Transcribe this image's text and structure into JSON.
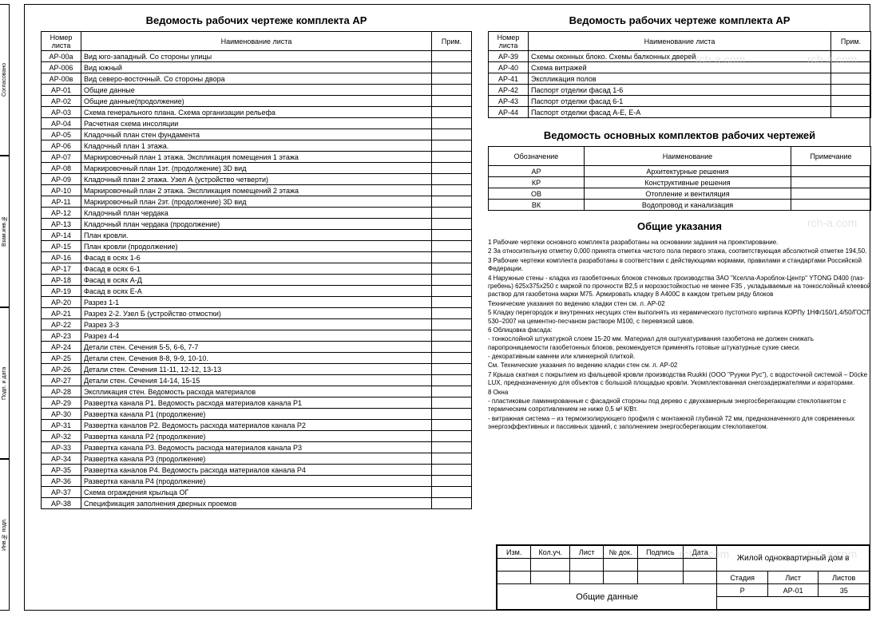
{
  "titles": {
    "table1": "Ведомость рабочих чертеже комплекта АР",
    "table2": "Ведомость рабочих чертеже комплекта АР",
    "table3": "Ведомость основных комплектов рабочих чертежей",
    "gu": "Общие указания"
  },
  "headers": {
    "h1": "Номер листа",
    "h2": "Наименование листа",
    "h3": "Прим.",
    "h4": "Обозначение",
    "h5": "Наименование",
    "h6": "Примечание"
  },
  "sheetList1": [
    [
      "АР-00а",
      "Вид юго-западный. Со стороны улицы"
    ],
    [
      "АР-006",
      "Вид южный"
    ],
    [
      "АР-00в",
      "Вид северо-восточный. Со стороны двора"
    ],
    [
      "АР-01",
      "Общие данные"
    ],
    [
      "АР-02",
      "Общие данные(продолжение)"
    ],
    [
      "АР-03",
      "Схема генерального плана. Схема организации рельефа"
    ],
    [
      "АР-04",
      "Расчетная схема инсоляции"
    ],
    [
      "АР-05",
      "Кладочный план стен фундамента"
    ],
    [
      "АР-06",
      "Кладочный план 1 этажа."
    ],
    [
      "АР-07",
      "Маркировочный план 1 этажа. Экспликация помещения 1 этажа"
    ],
    [
      "АР-08",
      "Маркировочный план 1эт. (продолжение) 3D вид"
    ],
    [
      "АР-09",
      "Кладочный план 2 этажа. Узел А (устройство четверти)"
    ],
    [
      "АР-10",
      "Маркировочный план 2 этажа. Экспликация помещений 2 этажа"
    ],
    [
      "АР-11",
      "Маркировочный план 2эт. (продолжение) 3D вид"
    ],
    [
      "АР-12",
      "Кладочный план чердака"
    ],
    [
      "АР-13",
      "Кладочный план чердака (продолжение)"
    ],
    [
      "АР-14",
      "План кровли."
    ],
    [
      "АР-15",
      "План кровли (продолжение)"
    ],
    [
      "АР-16",
      "Фасад в осях 1-6"
    ],
    [
      "АР-17",
      "Фасад в осях 6-1"
    ],
    [
      "АР-18",
      "Фасад в осях А-Д"
    ],
    [
      "АР-19",
      "Фасад в осях Е-А"
    ],
    [
      "АР-20",
      "Разрез 1-1"
    ],
    [
      "АР-21",
      "Разрез 2-2. Узел Б (устройство отмостки)"
    ],
    [
      "АР-22",
      "Разрез 3-3"
    ],
    [
      "АР-23",
      "Разрез 4-4"
    ],
    [
      "АР-24",
      "Детали стен. Сечения 5-5, 6-6, 7-7"
    ],
    [
      "АР-25",
      "Детали стен. Сечения  8-8, 9-9, 10-10."
    ],
    [
      "АР-26",
      "Детали стен. Сечения 11-11, 12-12, 13-13"
    ],
    [
      "АР-27",
      "Детали стен. Сечения 14-14, 15-15"
    ],
    [
      "АР-28",
      "Экспликация стен. Ведомость расхода материалов"
    ],
    [
      "АР-29",
      "Развертка канала Р1. Ведомость расхода материалов канала Р1"
    ],
    [
      "АР-30",
      "Развертка канала Р1 (продолжение)"
    ],
    [
      "АР-31",
      "Развертка каналов Р2. Ведомость расхода материалов канала Р2"
    ],
    [
      "АР-32",
      "Развертка канала Р2 (продолжение)"
    ],
    [
      "АР-33",
      "Развертка канала Р3. Ведомость расхода материалов канала Р3"
    ],
    [
      "АР-34",
      "Развертка канала Р3 (продолжение)"
    ],
    [
      "АР-35",
      "Развертка каналов Р4. Ведомость расхода материалов канала Р4"
    ],
    [
      "АР-36",
      "Развертка канала Р4 (продолжение)"
    ],
    [
      "АР-37",
      "Схема ограждения крыльца ОГ"
    ],
    [
      "АР-38",
      "Спецификация заполнения дверных проемов"
    ]
  ],
  "sheetList2": [
    [
      "АР-39",
      "Схемы оконных блоко. Схемы балконных дверей"
    ],
    [
      "АР-40",
      "Схема витражей"
    ],
    [
      "АР-41",
      "Экспликация полов"
    ],
    [
      "АР-42",
      "Паспорт отделки фасад 1-6"
    ],
    [
      "АР-43",
      "Паспорт отделки фасад 6-1"
    ],
    [
      "АР-44",
      "Паспорт отделки фасад А-Е, Е-А"
    ]
  ],
  "kitList": [
    [
      "АР",
      "Архитектурные решения",
      ""
    ],
    [
      "КР",
      "Конструктивные решения",
      ""
    ],
    [
      "ОВ",
      "Отопление и вентиляция",
      ""
    ],
    [
      "ВК",
      "Водопровод и канализация",
      ""
    ]
  ],
  "gu": [
    "1    Рабочие чертежи основного комплекта разработаны на основании задания на проектирование.",
    "2    За относительную отметку 0,000 принята отметка чистого пола первого этажа, соответствующая абсолютной отметке  194,50.",
    "3    Рабочие чертежи комплекта разработаны в соответствии с действующими нормами, правилами и стандартами Российской Федерации.",
    "4    Наружные стены - кладка из газобетонных блоков стеновых производства ЗАО \"Кселла-Аэроблок-Центр\" YTONG D400 (паз-гребень) 625х375х250 с маркой по прочности В2,5 и морозостойкостью не менее F35 , укладываемые на тонкослойный клеевой раствор для газобетона марки М75. Армировать кладку 8 А400С в каждом третьем ряду блоков",
    "Технические указания по ведению кладки стен см. л. АР-02",
    "5    Кладку перегородок и внутренних несущих стен выполнять из керамического пустотного кирпича КОРПу 1НФ/150/1,4/50/ГОСТ 530–2007 на цементно-песчаном растворе М100, с перевязкой швов.",
    "6    Облицовка фасада:",
    "   - тонкослойной штукатуркой слоем 15-20 мм. Материал для оштукатуривания газобетона не должен снижать паропроницаемости газобетонных блоков, рекомендуется применять готовые штукатурные сухие смеси.",
    "   - декоративным камнем или клинкерной плиткой.",
    "См. Технические указания по ведению кладки стен см. л. АР-02",
    "7    Крыша скатная с покрытием из фальцевой кровли производства Ruukki (ООО \"Руукки Рус\"), с водосточной системой – Döcke LUX, предназначенную для объектов с большой площадью кровли. Укомплектованная снегозадержателями и аэраторами.",
    "8    Окна",
    "   - пластиковые ламинированные с фасадной стороны под дерево с двухкамерным энергосберегающим стеклопакетом с термическим сопротивлением не ниже 0,5 м² К/Вт.",
    "   - витражная система – из термоизолирующего профиля с монтажной глубиной 72 мм, предназначенного для современных энергоэффективных и пассивных зданий, с заполнением энергосберегающим стеклопакетом."
  ],
  "stamp": {
    "project": "Жилой одноквартирный дом в",
    "section": "Общие данные",
    "cols": [
      "Изм.",
      "Кол.уч.",
      "Лист",
      "№ док.",
      "Подпись",
      "Дата"
    ],
    "rcols": [
      "Стадия",
      "Лист",
      "Листов"
    ],
    "rvals": [
      "Р",
      "АР-01",
      "35"
    ]
  },
  "strip": [
    "Согласовано",
    "Взам.инв.№",
    "Подп. и дата",
    "Инв.№ подп."
  ],
  "watermarks": [
    "rch-a.com",
    "rch-a.com",
    "rch-a.com",
    "rch-a.com",
    "rch-a.com"
  ],
  "colors": {
    "border": "#000000",
    "bg": "#ffffff",
    "wm": "#cccccc"
  }
}
